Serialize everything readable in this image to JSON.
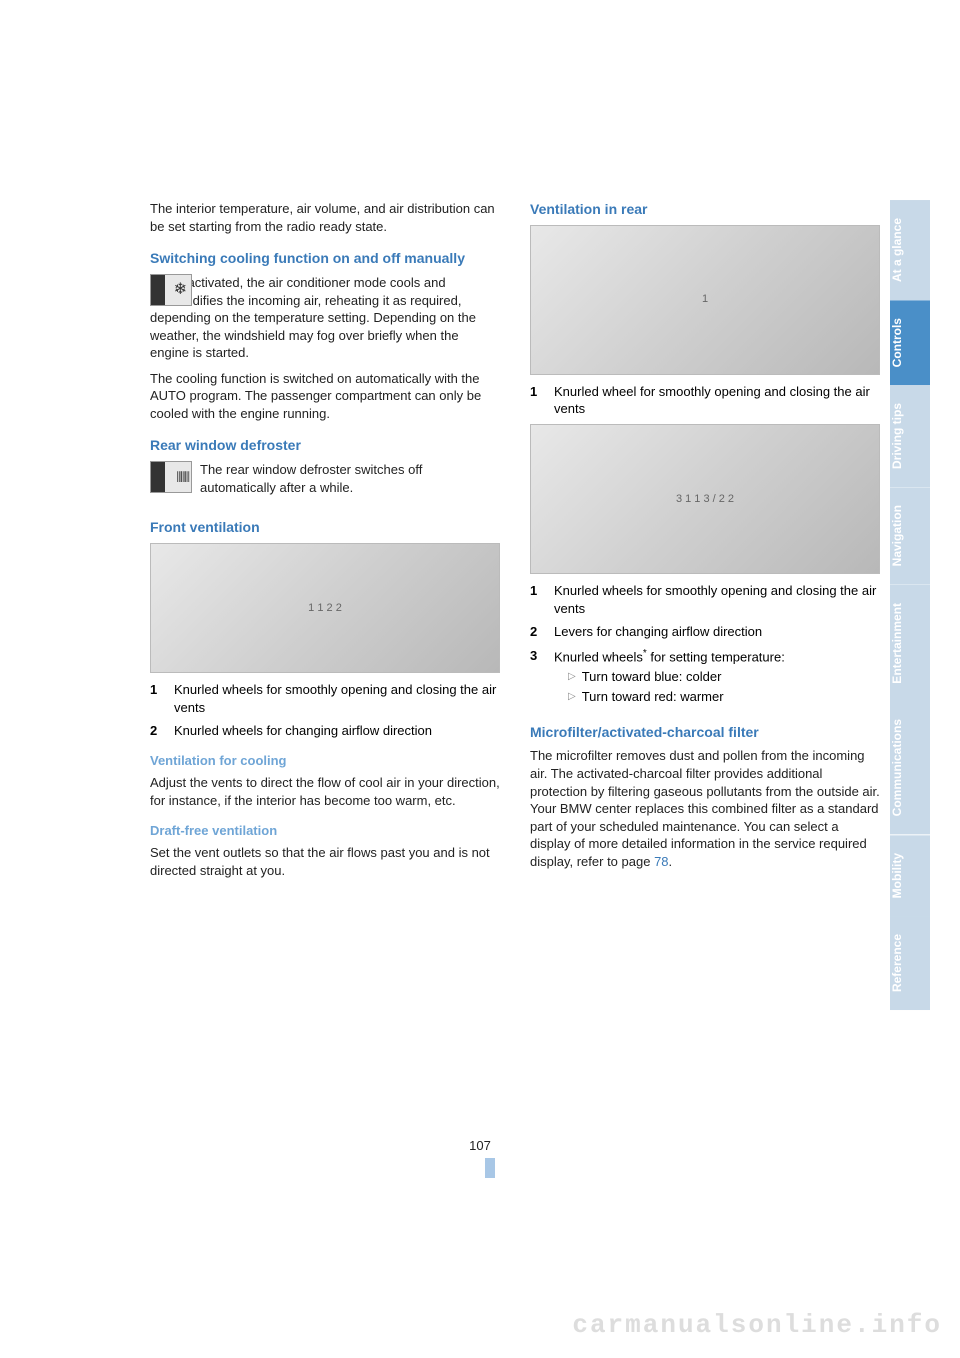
{
  "colors": {
    "heading_blue": "#3a7ab8",
    "heading_light": "#6fa5d6",
    "tab_text": "#ffffff",
    "tab_active_bg": "#4a8fc8",
    "tab_inactive_bg": "#c8d9e8",
    "watermark": "#dddddd",
    "body_text": "#222222"
  },
  "left": {
    "p1": "The interior temperature, air volume, and air distribution can be set starting from the radio ready state.",
    "h1": "Switching cooling function on and off manually",
    "p2a": "When activated, the air conditioner mode cools and dehumidifies the incoming air, reheating it as required, depending on the temperature setting. Depending on the weather, the windshield may fog over briefly when the engine is started.",
    "p2b": "The cooling function is switched on automatically with the AUTO program. The passenger compartment can only be cooled with the engine running.",
    "h2": "Rear window defroster",
    "p3": "The rear window defroster switches off automatically after a while.",
    "h3": "Front ventilation",
    "list1_1": "Knurled wheels for smoothly opening and closing the air vents",
    "list1_2": "Knurled wheels for changing airflow direction",
    "h4": "Ventilation for cooling",
    "p4": "Adjust the vents to direct the flow of cool air in your direction, for instance, if the interior has become too warm, etc.",
    "h5": "Draft-free ventilation",
    "p5": "Set the vent outlets so that the air flows past you and is not directed straight at you."
  },
  "right": {
    "h1": "Ventilation in rear",
    "list1_1": "Knurled wheel for smoothly opening and closing the air vents",
    "list2_1": "Knurled wheels for smoothly opening and closing the air vents",
    "list2_2": "Levers for changing airflow direction",
    "list2_3": "Knurled wheels",
    "list2_3b": " for setting temperature:",
    "sub_a": "Turn toward blue: colder",
    "sub_b": "Turn toward red: warmer",
    "h2": "Microfilter/activated-charcoal filter",
    "p2": "The microfilter removes dust and pollen from the incoming air. The activated-charcoal filter provides additional protection by filtering gaseous pollutants from the outside air. Your BMW center replaces this combined filter as a standard part of your scheduled maintenance. You can select a display of more detailed information in the service required display, refer to page ",
    "p2_link": "78",
    "p2_end": "."
  },
  "tabs": [
    {
      "label": "At a glance",
      "bg": "#c8d9e8",
      "color": "#ffffff"
    },
    {
      "label": "Controls",
      "bg": "#4a8fc8",
      "color": "#ffffff"
    },
    {
      "label": "Driving tips",
      "bg": "#c8d9e8",
      "color": "#ffffff"
    },
    {
      "label": "Navigation",
      "bg": "#c8d9e8",
      "color": "#ffffff"
    },
    {
      "label": "Entertainment",
      "bg": "#c8d9e8",
      "color": "#ffffff"
    },
    {
      "label": "Communications",
      "bg": "#c8d9e8",
      "color": "#ffffff"
    },
    {
      "label": "Mobility",
      "bg": "#c8d9e8",
      "color": "#ffffff"
    },
    {
      "label": "Reference",
      "bg": "#c8d9e8",
      "color": "#ffffff"
    }
  ],
  "page_number": "107",
  "watermark": "carmanualsonline.info",
  "diagrams": {
    "front_vent_labels": "1  1   2  2",
    "rear_vent_a_label": "1",
    "rear_vent_b_labels": "3 1 1 3  /  2  2"
  },
  "list_numbers": {
    "n1": "1",
    "n2": "2",
    "n3": "3"
  }
}
